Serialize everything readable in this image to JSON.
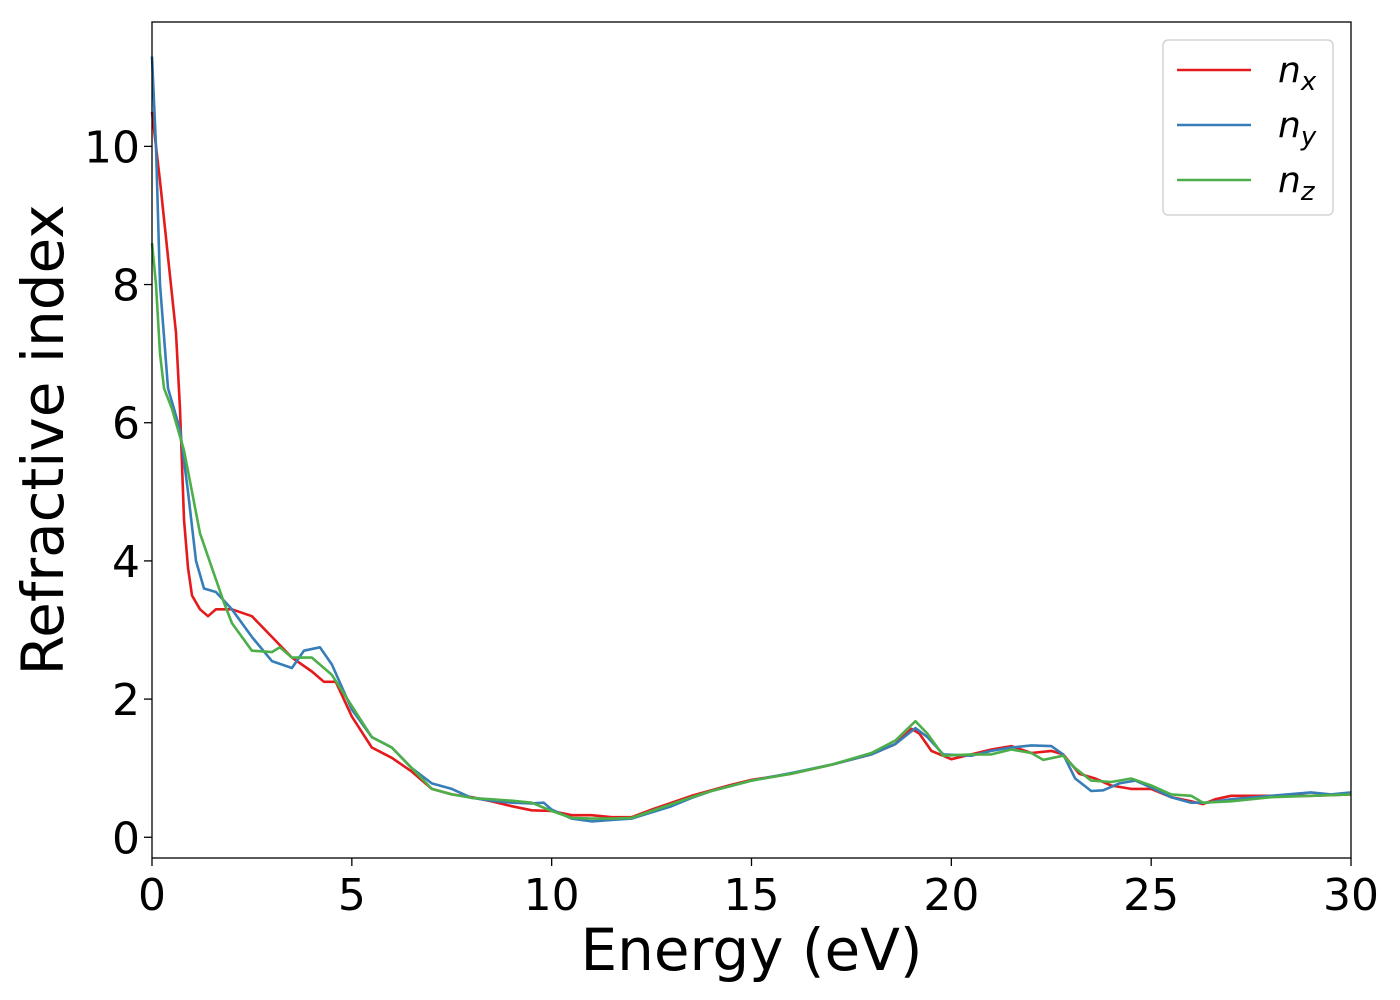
{
  "chart_data": {
    "type": "line",
    "xlabel": "Energy (eV)",
    "ylabel": "Refractive index",
    "xlim": [
      0,
      30
    ],
    "ylim": [
      -0.3,
      11.8
    ],
    "x_ticks": [
      0,
      5,
      10,
      15,
      20,
      25,
      30
    ],
    "y_ticks": [
      0,
      2,
      4,
      6,
      8,
      10
    ],
    "grid": false,
    "legend_position": "top-right",
    "series": [
      {
        "name": "n",
        "subscript": "x",
        "color": "#e41a1c",
        "points": [
          [
            0,
            10.5
          ],
          [
            0.2,
            9.5
          ],
          [
            0.4,
            8.4
          ],
          [
            0.6,
            7.3
          ],
          [
            0.7,
            6.2
          ],
          [
            0.8,
            4.6
          ],
          [
            0.9,
            3.9
          ],
          [
            1.0,
            3.5
          ],
          [
            1.2,
            3.3
          ],
          [
            1.4,
            3.2
          ],
          [
            1.6,
            3.3
          ],
          [
            2.0,
            3.3
          ],
          [
            2.5,
            3.2
          ],
          [
            3.0,
            2.9
          ],
          [
            3.5,
            2.6
          ],
          [
            4.0,
            2.4
          ],
          [
            4.3,
            2.25
          ],
          [
            4.6,
            2.25
          ],
          [
            5.0,
            1.75
          ],
          [
            5.5,
            1.3
          ],
          [
            6.0,
            1.15
          ],
          [
            6.5,
            0.95
          ],
          [
            7.0,
            0.7
          ],
          [
            7.5,
            0.62
          ],
          [
            8.0,
            0.58
          ],
          [
            8.5,
            0.52
          ],
          [
            9.0,
            0.45
          ],
          [
            9.5,
            0.39
          ],
          [
            10.0,
            0.38
          ],
          [
            10.5,
            0.32
          ],
          [
            11.0,
            0.32
          ],
          [
            11.5,
            0.29
          ],
          [
            12.0,
            0.29
          ],
          [
            12.5,
            0.4
          ],
          [
            13.0,
            0.5
          ],
          [
            13.5,
            0.6
          ],
          [
            14.0,
            0.68
          ],
          [
            14.5,
            0.76
          ],
          [
            15.0,
            0.83
          ],
          [
            16.0,
            0.92
          ],
          [
            17.0,
            1.05
          ],
          [
            18.0,
            1.2
          ],
          [
            18.6,
            1.35
          ],
          [
            19.0,
            1.57
          ],
          [
            19.2,
            1.5
          ],
          [
            19.5,
            1.25
          ],
          [
            20.0,
            1.13
          ],
          [
            20.5,
            1.2
          ],
          [
            21.0,
            1.27
          ],
          [
            21.5,
            1.32
          ],
          [
            22.0,
            1.22
          ],
          [
            22.5,
            1.25
          ],
          [
            22.8,
            1.2
          ],
          [
            23.2,
            0.92
          ],
          [
            23.6,
            0.85
          ],
          [
            24.0,
            0.75
          ],
          [
            24.5,
            0.7
          ],
          [
            25.0,
            0.7
          ],
          [
            25.5,
            0.58
          ],
          [
            26.0,
            0.52
          ],
          [
            26.3,
            0.48
          ],
          [
            26.6,
            0.55
          ],
          [
            27.0,
            0.6
          ],
          [
            28.0,
            0.6
          ],
          [
            29.0,
            0.6
          ],
          [
            30.0,
            0.62
          ]
        ]
      },
      {
        "name": "n",
        "subscript": "y",
        "color": "#377eb8",
        "points": [
          [
            0,
            11.3
          ],
          [
            0.1,
            10.0
          ],
          [
            0.2,
            8.0
          ],
          [
            0.4,
            6.5
          ],
          [
            0.7,
            5.9
          ],
          [
            0.9,
            5.0
          ],
          [
            1.1,
            4.0
          ],
          [
            1.3,
            3.6
          ],
          [
            1.6,
            3.55
          ],
          [
            2.0,
            3.3
          ],
          [
            2.5,
            2.9
          ],
          [
            3.0,
            2.55
          ],
          [
            3.5,
            2.45
          ],
          [
            3.8,
            2.7
          ],
          [
            4.2,
            2.75
          ],
          [
            4.5,
            2.5
          ],
          [
            5.0,
            1.85
          ],
          [
            5.5,
            1.45
          ],
          [
            6.0,
            1.3
          ],
          [
            6.5,
            1.0
          ],
          [
            7.0,
            0.78
          ],
          [
            7.5,
            0.7
          ],
          [
            8.0,
            0.57
          ],
          [
            8.5,
            0.53
          ],
          [
            9.0,
            0.5
          ],
          [
            9.5,
            0.49
          ],
          [
            9.8,
            0.5
          ],
          [
            10.0,
            0.4
          ],
          [
            10.5,
            0.27
          ],
          [
            11.0,
            0.23
          ],
          [
            11.5,
            0.25
          ],
          [
            12.0,
            0.27
          ],
          [
            12.5,
            0.36
          ],
          [
            13.0,
            0.45
          ],
          [
            13.5,
            0.57
          ],
          [
            14.0,
            0.67
          ],
          [
            15.0,
            0.82
          ],
          [
            16.0,
            0.93
          ],
          [
            17.0,
            1.05
          ],
          [
            18.0,
            1.2
          ],
          [
            18.6,
            1.35
          ],
          [
            19.1,
            1.58
          ],
          [
            19.4,
            1.45
          ],
          [
            19.8,
            1.2
          ],
          [
            20.5,
            1.18
          ],
          [
            21.0,
            1.25
          ],
          [
            21.5,
            1.3
          ],
          [
            22.0,
            1.33
          ],
          [
            22.5,
            1.32
          ],
          [
            22.8,
            1.2
          ],
          [
            23.1,
            0.85
          ],
          [
            23.5,
            0.67
          ],
          [
            23.8,
            0.68
          ],
          [
            24.2,
            0.78
          ],
          [
            24.6,
            0.82
          ],
          [
            25.0,
            0.72
          ],
          [
            25.5,
            0.58
          ],
          [
            26.0,
            0.5
          ],
          [
            26.4,
            0.5
          ],
          [
            27.0,
            0.55
          ],
          [
            28.0,
            0.6
          ],
          [
            29.0,
            0.65
          ],
          [
            29.5,
            0.62
          ],
          [
            30.0,
            0.65
          ]
        ]
      },
      {
        "name": "n",
        "subscript": "z",
        "color": "#4daf4a",
        "points": [
          [
            0,
            8.6
          ],
          [
            0.1,
            8.0
          ],
          [
            0.2,
            7.0
          ],
          [
            0.3,
            6.5
          ],
          [
            0.5,
            6.2
          ],
          [
            0.8,
            5.6
          ],
          [
            1.0,
            5.0
          ],
          [
            1.2,
            4.4
          ],
          [
            1.5,
            3.9
          ],
          [
            1.8,
            3.4
          ],
          [
            2.0,
            3.1
          ],
          [
            2.5,
            2.7
          ],
          [
            3.0,
            2.68
          ],
          [
            3.2,
            2.75
          ],
          [
            3.5,
            2.6
          ],
          [
            4.0,
            2.6
          ],
          [
            4.5,
            2.35
          ],
          [
            5.0,
            1.9
          ],
          [
            5.5,
            1.45
          ],
          [
            6.0,
            1.3
          ],
          [
            6.5,
            1.0
          ],
          [
            7.0,
            0.7
          ],
          [
            7.5,
            0.62
          ],
          [
            8.0,
            0.57
          ],
          [
            8.5,
            0.55
          ],
          [
            9.0,
            0.53
          ],
          [
            9.5,
            0.5
          ],
          [
            10.0,
            0.38
          ],
          [
            10.5,
            0.28
          ],
          [
            11.0,
            0.27
          ],
          [
            11.5,
            0.27
          ],
          [
            12.0,
            0.28
          ],
          [
            12.5,
            0.38
          ],
          [
            13.0,
            0.48
          ],
          [
            13.5,
            0.58
          ],
          [
            14.0,
            0.67
          ],
          [
            15.0,
            0.82
          ],
          [
            16.0,
            0.92
          ],
          [
            17.0,
            1.05
          ],
          [
            18.0,
            1.22
          ],
          [
            18.6,
            1.4
          ],
          [
            19.1,
            1.68
          ],
          [
            19.4,
            1.5
          ],
          [
            19.8,
            1.18
          ],
          [
            20.5,
            1.2
          ],
          [
            21.0,
            1.2
          ],
          [
            21.5,
            1.27
          ],
          [
            22.0,
            1.22
          ],
          [
            22.3,
            1.12
          ],
          [
            22.8,
            1.18
          ],
          [
            23.1,
            1.0
          ],
          [
            23.5,
            0.82
          ],
          [
            24.0,
            0.8
          ],
          [
            24.5,
            0.85
          ],
          [
            25.0,
            0.75
          ],
          [
            25.5,
            0.62
          ],
          [
            26.0,
            0.6
          ],
          [
            26.3,
            0.5
          ],
          [
            27.0,
            0.52
          ],
          [
            28.0,
            0.58
          ],
          [
            29.0,
            0.6
          ],
          [
            30.0,
            0.62
          ]
        ]
      }
    ]
  }
}
